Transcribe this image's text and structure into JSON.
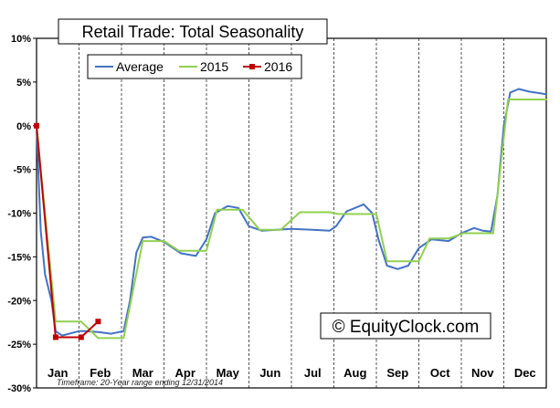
{
  "chart_data": {
    "type": "line",
    "title": "Retail Trade: Total Seasonality",
    "y_tick_labels": [
      "10%",
      "5%",
      "0%",
      "-5%",
      "-10%",
      "-15%",
      "-20%",
      "-25%",
      "-30%"
    ],
    "ylim": [
      -30,
      10
    ],
    "categories": [
      "Jan",
      "Feb",
      "Mar",
      "Apr",
      "May",
      "Jun",
      "Jul",
      "Aug",
      "Sep",
      "Oct",
      "Nov",
      "Dec"
    ],
    "xlim": [
      0,
      12
    ],
    "grid": "vertical dashed lines at month boundaries",
    "legend_position": "top-left",
    "series": [
      {
        "name": "Average",
        "color": "#4472C4",
        "points": [
          [
            0,
            0
          ],
          [
            0.1,
            -12
          ],
          [
            0.2,
            -17
          ],
          [
            0.35,
            -20
          ],
          [
            0.45,
            -23.5
          ],
          [
            0.6,
            -24
          ],
          [
            1.0,
            -23.5
          ],
          [
            1.15,
            -23.5
          ],
          [
            1.45,
            -23.6
          ],
          [
            1.75,
            -23.8
          ],
          [
            2.05,
            -23.5
          ],
          [
            2.2,
            -20
          ],
          [
            2.35,
            -14.5
          ],
          [
            2.5,
            -12.8
          ],
          [
            2.7,
            -12.7
          ],
          [
            3.0,
            -13.3
          ],
          [
            3.4,
            -14.6
          ],
          [
            3.75,
            -14.9
          ],
          [
            4.0,
            -13
          ],
          [
            4.2,
            -10
          ],
          [
            4.5,
            -9.2
          ],
          [
            4.75,
            -9.4
          ],
          [
            5.0,
            -11.5
          ],
          [
            5.3,
            -12
          ],
          [
            6.0,
            -11.8
          ],
          [
            6.5,
            -11.9
          ],
          [
            6.9,
            -12
          ],
          [
            7.05,
            -11.5
          ],
          [
            7.3,
            -9.8
          ],
          [
            7.7,
            -9
          ],
          [
            7.9,
            -10
          ],
          [
            8.05,
            -13
          ],
          [
            8.25,
            -16
          ],
          [
            8.5,
            -16.4
          ],
          [
            8.75,
            -16
          ],
          [
            9.0,
            -14
          ],
          [
            9.3,
            -13
          ],
          [
            9.7,
            -13.2
          ],
          [
            10.0,
            -12.3
          ],
          [
            10.3,
            -11.7
          ],
          [
            10.5,
            -12
          ],
          [
            10.7,
            -12.1
          ],
          [
            10.85,
            -8
          ],
          [
            11.0,
            0
          ],
          [
            11.15,
            3.8
          ],
          [
            11.35,
            4.2
          ],
          [
            11.6,
            3.9
          ],
          [
            12.0,
            3.6
          ]
        ]
      },
      {
        "name": "2015",
        "color": "#92D050",
        "points": [
          [
            0,
            0
          ],
          [
            0.45,
            -22.4
          ],
          [
            1.05,
            -22.4
          ],
          [
            1.45,
            -24.3
          ],
          [
            2.05,
            -24.3
          ],
          [
            2.5,
            -13.2
          ],
          [
            3.0,
            -13.2
          ],
          [
            3.35,
            -14.3
          ],
          [
            4.0,
            -14.3
          ],
          [
            4.25,
            -9.6
          ],
          [
            4.85,
            -9.6
          ],
          [
            5.25,
            -11.9
          ],
          [
            5.75,
            -11.9
          ],
          [
            6.2,
            -9.9
          ],
          [
            6.9,
            -9.9
          ],
          [
            7.1,
            -10.1
          ],
          [
            8.0,
            -10.1
          ],
          [
            8.25,
            -15.5
          ],
          [
            9.0,
            -15.5
          ],
          [
            9.25,
            -12.9
          ],
          [
            9.7,
            -12.9
          ],
          [
            10.05,
            -12.3
          ],
          [
            10.75,
            -12.3
          ],
          [
            11.1,
            3
          ],
          [
            12.0,
            3
          ]
        ]
      },
      {
        "name": "2016",
        "color": "#C00000",
        "points": [
          [
            0,
            0
          ],
          [
            0.45,
            -24.2
          ],
          [
            1.05,
            -24.2
          ],
          [
            1.45,
            -22.4
          ]
        ]
      }
    ],
    "annotations": {
      "watermark": "© EquityClock.com",
      "footnote": "Timeframe: 20-Year range ending 12/31/2014"
    }
  }
}
